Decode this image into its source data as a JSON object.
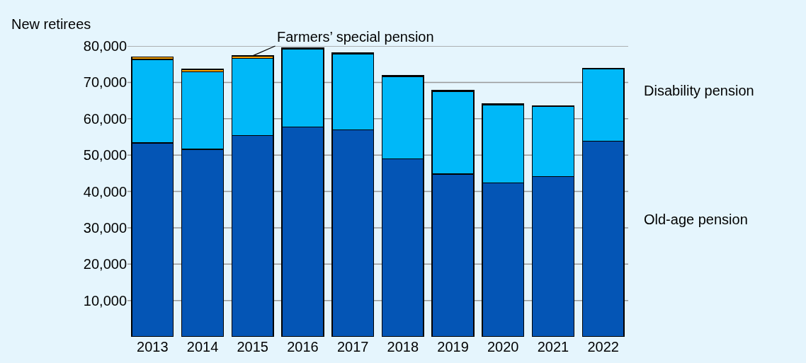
{
  "chart_data": {
    "type": "bar",
    "stacked": true,
    "ylabel": "New retirees",
    "categories": [
      "2013",
      "2014",
      "2015",
      "2016",
      "2017",
      "2018",
      "2019",
      "2020",
      "2021",
      "2022"
    ],
    "series": [
      {
        "name": "Old-age pension",
        "color": "#0455b5",
        "values": [
          53300,
          51600,
          55400,
          57700,
          56900,
          49000,
          44800,
          42300,
          44100,
          53800
        ]
      },
      {
        "name": "Disability pension",
        "color": "#00b8f8",
        "values": [
          23000,
          21300,
          21200,
          21500,
          21000,
          22500,
          22700,
          21500,
          19400,
          20000
        ]
      },
      {
        "name": "Farmers’ special pension",
        "color": "#f5a000",
        "values": [
          700,
          700,
          700,
          300,
          300,
          300,
          300,
          200,
          100,
          null
        ]
      }
    ],
    "ylim": [
      0,
      80000
    ],
    "yticks": [
      {
        "value": 10000,
        "label": "10,000"
      },
      {
        "value": 20000,
        "label": "20,000"
      },
      {
        "value": 30000,
        "label": "30,000"
      },
      {
        "value": 40000,
        "label": "40,000"
      },
      {
        "value": 50000,
        "label": "50,000"
      },
      {
        "value": 60000,
        "label": "60,000"
      },
      {
        "value": 70000,
        "label": "70,000"
      },
      {
        "value": 80000,
        "label": "80,000"
      }
    ],
    "grid": "y",
    "legend": false
  }
}
